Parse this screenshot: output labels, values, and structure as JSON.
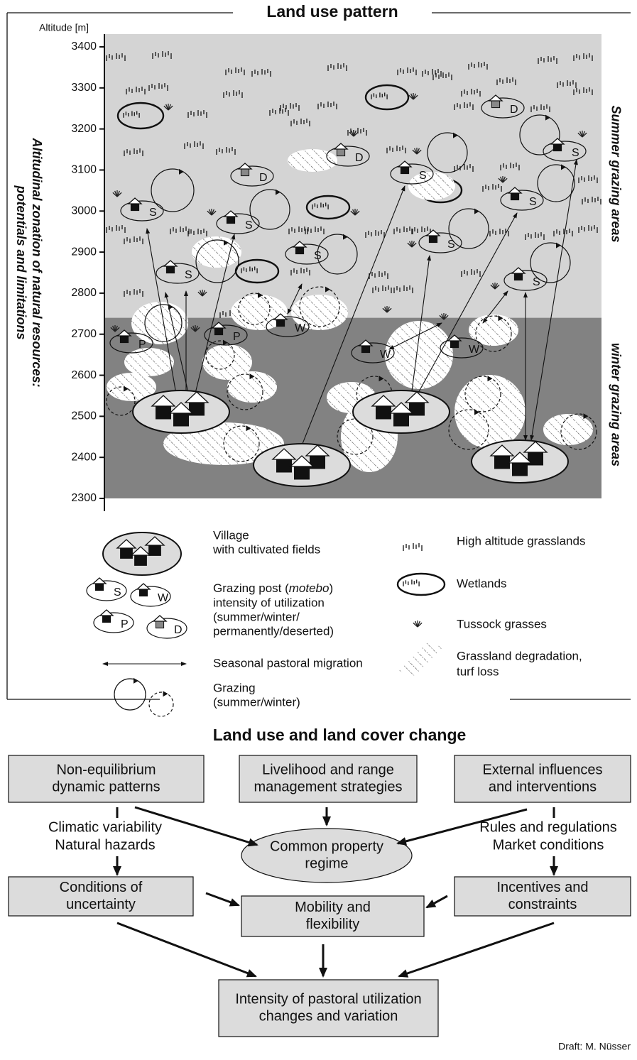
{
  "top": {
    "title": "Land use pattern",
    "y_axis_label": "Altitude [m]",
    "yticks": [
      3400,
      3300,
      3200,
      3100,
      3000,
      2900,
      2800,
      2700,
      2600,
      2500,
      2400,
      2300
    ],
    "side_label": [
      "Altitudinal zonation of natural resources:",
      "potentials and limitations"
    ],
    "zone_labels": [
      "Summer grazing areas",
      "winter grazing areas"
    ],
    "posts": [
      "S",
      "S",
      "S",
      "S",
      "D",
      "D",
      "S",
      "D",
      "S",
      "S",
      "S",
      "S",
      "P",
      "P",
      "W",
      "W",
      "W"
    ]
  },
  "legend": {
    "village": [
      "Village",
      "with cultivated fields"
    ],
    "post_letters": [
      "S",
      "W",
      "P",
      "D"
    ],
    "post_first_line": [
      "Grazing post (",
      "motebo",
      ")"
    ],
    "post_lines": [
      "intensity of utilization",
      "(summer/winter/",
      "permanently/deserted)"
    ],
    "migration": "Seasonal pastoral migration",
    "grazing": [
      "Grazing",
      "(summer/winter)"
    ],
    "grasslands": "High altitude grasslands",
    "wetlands": "Wetlands",
    "tussock": "Tussock grasses",
    "degradation": [
      "Grassland degradation,",
      "turf loss"
    ]
  },
  "bottom": {
    "title": "Land use and land cover change",
    "nodes": [
      [
        "Non-equilibrium",
        "dynamic patterns"
      ],
      [
        "Livelihood and range",
        "management strategies"
      ],
      [
        "External influences",
        "and interventions"
      ],
      [
        "Common property",
        "regime"
      ],
      [
        "Conditions of",
        "uncertainty"
      ],
      [
        "Mobility and",
        "flexibility"
      ],
      [
        "Incentives and",
        "constraints"
      ],
      [
        "Intensity of pastoral utilization",
        "changes and variation"
      ]
    ],
    "left_factors": [
      "Climatic variability",
      "Natural hazards"
    ],
    "right_factors": [
      "Rules and regulations",
      "Market conditions"
    ]
  },
  "credit": "Draft: M. Nüsser"
}
